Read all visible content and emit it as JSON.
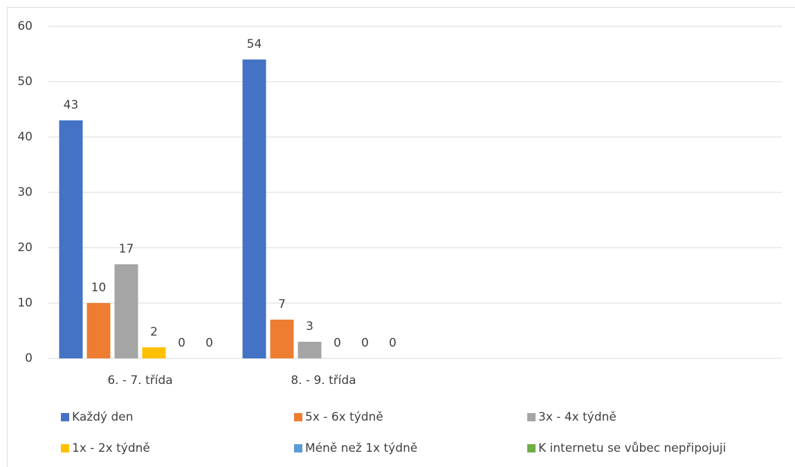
{
  "chart_data": {
    "type": "bar",
    "categories": [
      "6. - 7. třída",
      "8. - 9. třída",
      null,
      null
    ],
    "series": [
      {
        "name": "Každý den",
        "color": "#4472c4",
        "values": [
          43,
          54,
          null,
          null
        ]
      },
      {
        "name": "5x - 6x týdně",
        "color": "#ed7d31",
        "values": [
          10,
          7,
          null,
          null
        ]
      },
      {
        "name": "3x - 4x týdně",
        "color": "#a5a5a5",
        "values": [
          17,
          3,
          null,
          null
        ]
      },
      {
        "name": "1x - 2x týdně",
        "color": "#ffc000",
        "values": [
          2,
          0,
          null,
          null
        ]
      },
      {
        "name": "Méně než 1x týdně",
        "color": "#5b9bd5",
        "values": [
          0,
          0,
          null,
          null
        ]
      },
      {
        "name": "K internetu se vůbec nepřipojuji",
        "color": "#70ad47",
        "values": [
          0,
          0,
          null,
          null
        ]
      }
    ],
    "ylim": [
      0,
      60
    ],
    "yticks": [
      0,
      10,
      20,
      30,
      40,
      50,
      60
    ],
    "grid": true,
    "legend": "bottom"
  }
}
